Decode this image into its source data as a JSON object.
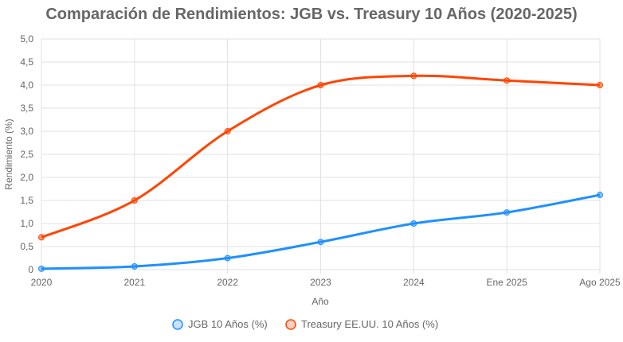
{
  "chart_data": {
    "type": "line",
    "title": "Comparación de Rendimientos: JGB vs. Treasury 10 Años (2020-2025)",
    "xlabel": "Año",
    "ylabel": "Rendimiento (%)",
    "categories": [
      "2020",
      "2021",
      "2022",
      "2023",
      "2024",
      "Ene 2025",
      "Ago 2025"
    ],
    "ylim": [
      0,
      5
    ],
    "yticks": [
      "0",
      "0,5",
      "1,0",
      "1,5",
      "2,0",
      "2,5",
      "3,0",
      "3,5",
      "4,0",
      "4,5",
      "5,0"
    ],
    "grid": true,
    "legend_position": "bottom",
    "series": [
      {
        "name": "JGB 10 Años (%)",
        "color": "#1e90ff",
        "values": [
          0.02,
          0.07,
          0.25,
          0.6,
          1.0,
          1.24,
          1.62
        ]
      },
      {
        "name": "Treasury EE.UU. 10 Años (%)",
        "color": "#ff4500",
        "values": [
          0.7,
          1.5,
          3.0,
          4.0,
          4.2,
          4.1,
          4.0
        ]
      }
    ]
  }
}
